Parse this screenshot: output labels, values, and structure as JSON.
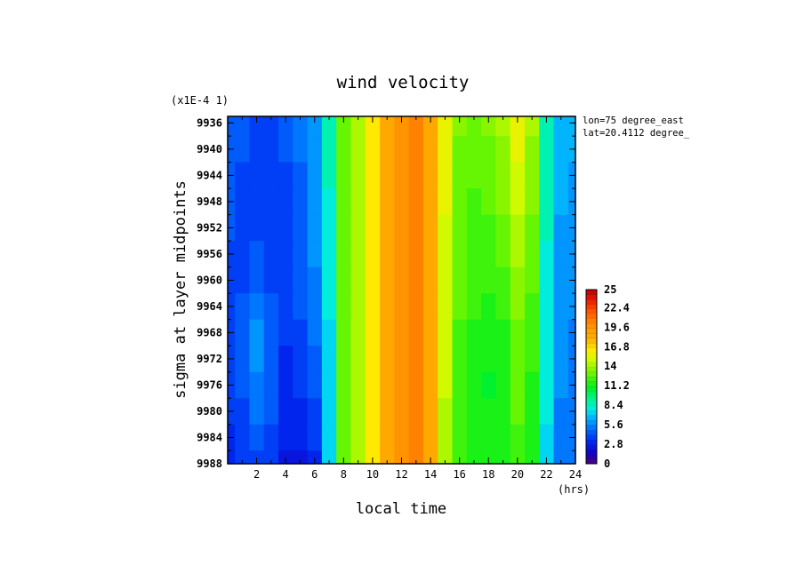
{
  "chart_data": {
    "type": "heatmap",
    "title": "wind velocity",
    "xlabel": "local time",
    "ylabel": "sigma at layer midpoints",
    "x_unit": "(hrs)",
    "y_scale_note": "(x1E-4 1)",
    "annotations": [
      "lon=75 degree_east",
      "lat=20.4112 degree_"
    ],
    "x": [
      0,
      1,
      2,
      3,
      4,
      5,
      6,
      7,
      8,
      9,
      10,
      11,
      12,
      13,
      14,
      15,
      16,
      17,
      18,
      19,
      20,
      21,
      22,
      23,
      24
    ],
    "y": [
      9936,
      9940,
      9944,
      9948,
      9952,
      9956,
      9960,
      9964,
      9968,
      9972,
      9976,
      9980,
      9984,
      9988
    ],
    "xlim": [
      0,
      24
    ],
    "ylim": [
      9988,
      9935
    ],
    "x_ticks": [
      "2",
      "4",
      "6",
      "8",
      "10",
      "12",
      "14",
      "16",
      "18",
      "20",
      "22",
      "24"
    ],
    "y_ticks": [
      "9936",
      "9940",
      "9944",
      "9948",
      "9952",
      "9956",
      "9960",
      "9964",
      "9968",
      "9972",
      "9976",
      "9980",
      "9984",
      "9988"
    ],
    "colorbar": {
      "min": 0,
      "max": 25,
      "levels": 36,
      "tick_labels": [
        "0",
        "2.8",
        "5.6",
        "8.4",
        "11.2",
        "14",
        "16.8",
        "19.6",
        "22.4",
        "25"
      ]
    },
    "values": [
      [
        4.6,
        4.3,
        4.1,
        4.0,
        4.3,
        5.0,
        6.2,
        8.8,
        12.6,
        14.3,
        16.2,
        18.5,
        20.0,
        20.2,
        18.6,
        15.5,
        13.2,
        12.8,
        13.2,
        14.0,
        15.6,
        14.0,
        9.0,
        6.8,
        6.5
      ],
      [
        4.5,
        4.2,
        4.0,
        3.9,
        4.2,
        4.9,
        6.0,
        8.6,
        12.6,
        14.3,
        16.2,
        18.5,
        20.0,
        20.2,
        18.6,
        15.5,
        13.1,
        12.6,
        13.0,
        13.8,
        15.3,
        13.8,
        8.8,
        6.6,
        6.3
      ],
      [
        4.4,
        4.1,
        3.9,
        3.8,
        4.1,
        4.8,
        5.9,
        8.4,
        12.6,
        14.3,
        16.2,
        18.5,
        20.0,
        20.2,
        18.6,
        15.4,
        13.0,
        12.5,
        12.8,
        13.5,
        15.0,
        13.5,
        8.6,
        6.4,
        6.1
      ],
      [
        4.3,
        4.0,
        3.9,
        3.7,
        4.0,
        4.7,
        5.8,
        8.2,
        12.6,
        14.3,
        16.2,
        18.5,
        20.0,
        20.2,
        18.6,
        15.3,
        12.9,
        12.4,
        12.6,
        13.3,
        14.6,
        13.3,
        8.5,
        6.3,
        6.0
      ],
      [
        4.2,
        4.0,
        4.1,
        3.8,
        3.9,
        4.6,
        5.7,
        8.0,
        12.6,
        14.3,
        16.2,
        18.5,
        20.0,
        20.2,
        18.6,
        15.2,
        12.8,
        12.2,
        12.4,
        13.0,
        14.3,
        13.0,
        8.4,
        6.2,
        5.9
      ],
      [
        4.1,
        4.0,
        4.4,
        3.9,
        3.8,
        4.5,
        5.6,
        7.9,
        12.6,
        14.3,
        16.2,
        18.5,
        20.0,
        20.2,
        18.6,
        15.1,
        12.7,
        12.1,
        12.2,
        12.7,
        14.0,
        12.8,
        8.3,
        6.1,
        5.8
      ],
      [
        4.0,
        4.1,
        4.8,
        4.1,
        3.7,
        4.4,
        5.5,
        7.8,
        12.6,
        14.3,
        16.2,
        18.5,
        20.0,
        20.2,
        18.6,
        15.0,
        12.6,
        12.0,
        12.0,
        12.4,
        13.6,
        12.6,
        8.2,
        6.0,
        5.7
      ],
      [
        3.9,
        4.3,
        5.3,
        4.4,
        3.6,
        4.2,
        5.3,
        7.7,
        12.6,
        14.3,
        16.2,
        18.5,
        20.0,
        20.2,
        18.6,
        14.9,
        12.5,
        11.9,
        11.8,
        12.1,
        13.3,
        12.4,
        8.1,
        5.9,
        5.6
      ],
      [
        3.8,
        4.4,
        5.6,
        4.6,
        3.5,
        4.0,
        5.1,
        7.6,
        12.6,
        14.3,
        16.2,
        18.5,
        20.0,
        20.2,
        18.6,
        14.8,
        12.4,
        11.8,
        11.6,
        11.8,
        13.0,
        12.2,
        8.0,
        5.8,
        5.5
      ],
      [
        3.7,
        4.4,
        5.7,
        4.8,
        3.4,
        3.9,
        4.7,
        7.5,
        12.6,
        14.3,
        16.2,
        18.5,
        20.0,
        20.2,
        18.6,
        14.7,
        12.3,
        11.7,
        11.3,
        11.7,
        12.8,
        12.0,
        7.9,
        5.7,
        5.4
      ],
      [
        3.6,
        4.3,
        5.5,
        4.6,
        3.2,
        3.6,
        4.4,
        7.4,
        12.6,
        14.3,
        16.2,
        18.5,
        20.0,
        20.2,
        18.6,
        14.6,
        12.2,
        11.6,
        11.1,
        11.6,
        12.6,
        11.8,
        7.8,
        5.6,
        5.3
      ],
      [
        3.5,
        4.1,
        4.9,
        4.2,
        3.0,
        3.3,
        4.1,
        7.3,
        12.6,
        14.3,
        16.2,
        18.5,
        20.0,
        20.2,
        18.6,
        14.5,
        12.1,
        11.6,
        11.2,
        11.6,
        12.5,
        11.6,
        7.7,
        5.5,
        5.2
      ],
      [
        3.4,
        3.8,
        4.3,
        3.8,
        2.8,
        2.9,
        3.7,
        7.2,
        12.6,
        14.3,
        16.2,
        18.5,
        20.0,
        20.2,
        18.6,
        14.4,
        12.0,
        11.7,
        11.3,
        11.7,
        12.4,
        11.5,
        7.6,
        5.4,
        5.1
      ],
      [
        3.3,
        3.6,
        3.9,
        3.5,
        2.7,
        2.6,
        3.4,
        7.1,
        12.6,
        14.3,
        16.2,
        18.5,
        20.0,
        20.2,
        18.6,
        14.3,
        12.0,
        11.8,
        11.4,
        11.8,
        12.4,
        11.4,
        7.5,
        5.3,
        5.0
      ]
    ]
  }
}
